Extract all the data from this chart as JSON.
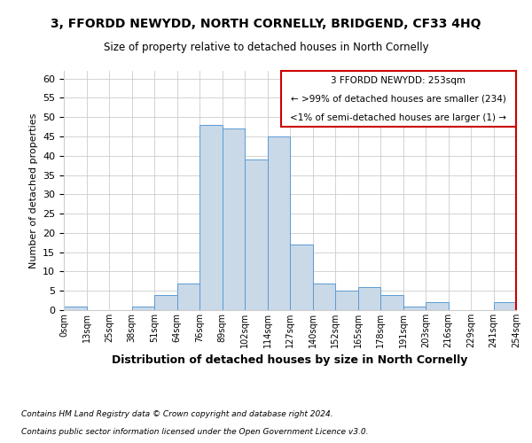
{
  "title": "3, FFORDD NEWYDD, NORTH CORNELLY, BRIDGEND, CF33 4HQ",
  "subtitle": "Size of property relative to detached houses in North Cornelly",
  "xlabel": "Distribution of detached houses by size in North Cornelly",
  "ylabel": "Number of detached properties",
  "footer_line1": "Contains HM Land Registry data © Crown copyright and database right 2024.",
  "footer_line2": "Contains public sector information licensed under the Open Government Licence v3.0.",
  "bin_labels": [
    "0sqm",
    "13sqm",
    "25sqm",
    "38sqm",
    "51sqm",
    "64sqm",
    "76sqm",
    "89sqm",
    "102sqm",
    "114sqm",
    "127sqm",
    "140sqm",
    "152sqm",
    "165sqm",
    "178sqm",
    "191sqm",
    "203sqm",
    "216sqm",
    "229sqm",
    "241sqm",
    "254sqm"
  ],
  "bar_values": [
    1,
    0,
    0,
    1,
    4,
    7,
    48,
    47,
    39,
    45,
    17,
    7,
    5,
    6,
    4,
    1,
    2,
    0,
    0,
    2
  ],
  "bar_color": "#c9d9e8",
  "bar_edge_color": "#5b9bd5",
  "ylim": [
    0,
    62
  ],
  "yticks": [
    0,
    5,
    10,
    15,
    20,
    25,
    30,
    35,
    40,
    45,
    50,
    55,
    60
  ],
  "annotation_line1": "3 FFORDD NEWYDD: 253sqm",
  "annotation_line2": "← >99% of detached houses are smaller (234)",
  "annotation_line3": "<1% of semi-detached houses are larger (1) →",
  "annotation_box_color": "#ffffff",
  "annotation_box_edge_color": "#cc0000",
  "background_color": "#ffffff",
  "grid_color": "#cccccc"
}
